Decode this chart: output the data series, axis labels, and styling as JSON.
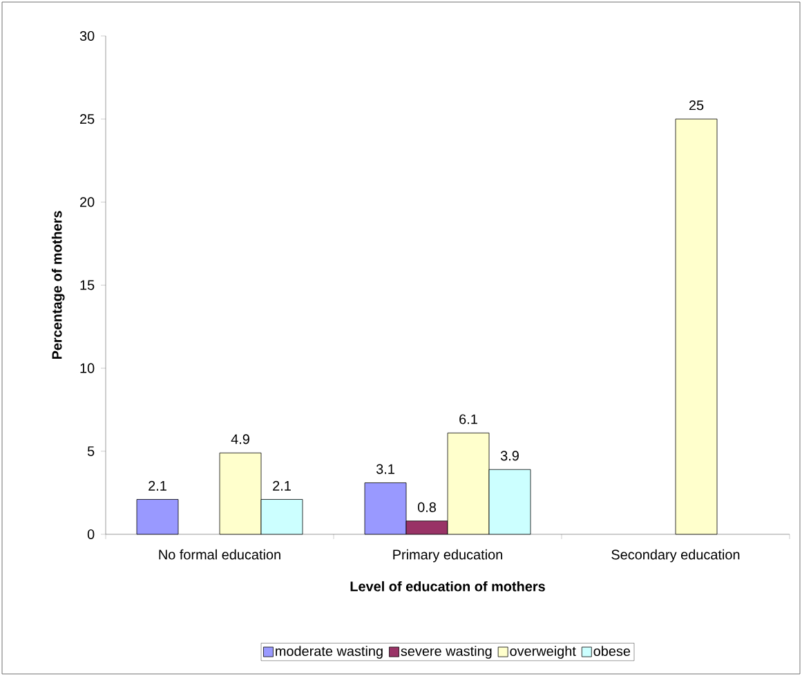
{
  "chart_data": {
    "type": "bar",
    "xlabel": "Level of education of mothers",
    "ylabel": "Percentage of mothers",
    "categories": [
      "No formal education",
      "Primary education",
      "Secondary education"
    ],
    "series": [
      {
        "name": "moderate wasting",
        "color": "#9999ff",
        "values": [
          2.1,
          3.1,
          null
        ]
      },
      {
        "name": "severe wasting",
        "color": "#993366",
        "values": [
          null,
          0.8,
          null
        ]
      },
      {
        "name": "overweight",
        "color": "#ffffcc",
        "values": [
          4.9,
          6.1,
          25
        ]
      },
      {
        "name": "obese",
        "color": "#ccffff",
        "values": [
          2.1,
          3.9,
          null
        ]
      }
    ],
    "ylim": [
      0,
      30
    ],
    "yticks": [
      0,
      5,
      10,
      15,
      20,
      25,
      30
    ],
    "data_labels": true,
    "legend": "bottom",
    "grid": false
  }
}
